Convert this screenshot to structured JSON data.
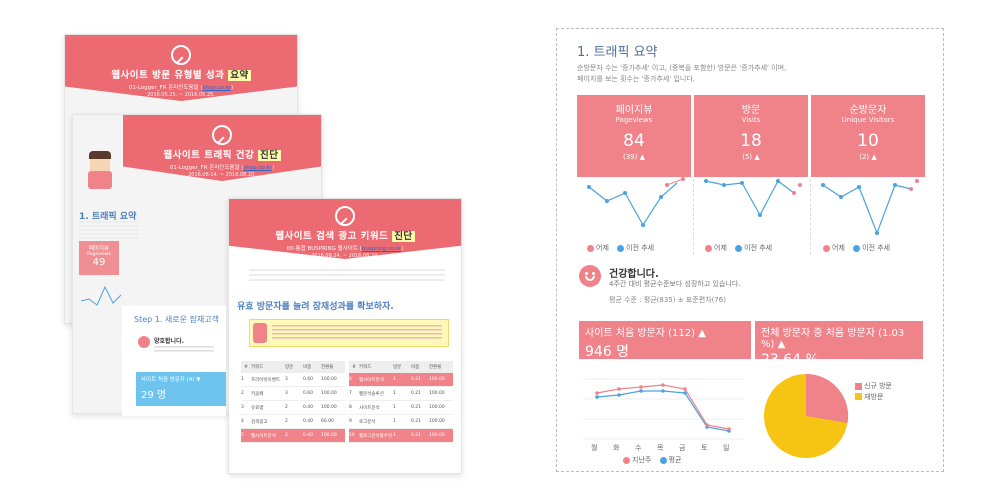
{
  "card1": {
    "title_pre": "웹사이트 방문 유형별 성과 ",
    "title_hl": "요약",
    "subtitle": "01-Logger_FR 온라인도움말 (",
    "link": "shop.co.kr",
    "subtitle_end": ")",
    "dates": "2016.05.25. ~ 2016.05.25."
  },
  "card2": {
    "title_pre": "웹사이트 트래픽 건강 ",
    "title_hl": "진단",
    "subtitle": "01-Logger_FR 온라인도움말 (",
    "link": "shop.co.kr",
    "subtitle_end": ")",
    "dates": "2016.08.14. ~ 2016.08.20.",
    "section": "1. 트래픽 요약",
    "metric_label": "페이지뷰",
    "metric_en": "Pageviews",
    "metric_value": "49"
  },
  "card3": {
    "title_pre": "웹사이트 검색 광고 키워드 ",
    "title_hl": "진단",
    "subtitle": "00-통합 BUSPRING 웹사이트 (",
    "link": "buspring.co.kr",
    "subtitle_end": ")",
    "dates": "2016.08.24. ~ 2016.08.24.",
    "heading": "유효 방문자를 늘려 잠재성과를 확보하자.",
    "step": "Step 1. 새로운 잠재고객",
    "ok": "양호합니다.",
    "visitor_label": "사이트 처음 방문자 (4) ▼",
    "visitor_value": "29 명",
    "col_headers": [
      "#",
      "키워드",
      "방문",
      "비중",
      "전환율"
    ],
    "left_rows": [
      {
        "n": "1",
        "kw": "프라이빗이벤트",
        "a": "3",
        "b": "0.60",
        "c": "100.00",
        "hl": false
      },
      {
        "n": "2",
        "kw": "키움페",
        "a": "3",
        "b": "0.60",
        "c": "100.00",
        "hl": false
      },
      {
        "n": "3",
        "kw": "유료앱",
        "a": "2",
        "b": "0.40",
        "c": "100.00",
        "hl": false
      },
      {
        "n": "4",
        "kw": "검색광고",
        "a": "2",
        "b": "0.40",
        "c": "66.00",
        "hl": false
      },
      {
        "n": "5",
        "kw": "웹사이트분석",
        "a": "2",
        "b": "0.40",
        "c": "100.00",
        "hl": true
      }
    ],
    "right_rows": [
      {
        "n": "6",
        "kw": "웹사이트분석",
        "a": "1",
        "b": "0.21",
        "c": "100.00",
        "hl": true
      },
      {
        "n": "7",
        "kw": "웹분석솔루션",
        "a": "1",
        "b": "0.21",
        "c": "100.00",
        "hl": false
      },
      {
        "n": "8",
        "kw": "사이트분석",
        "a": "1",
        "b": "0.21",
        "c": "100.00",
        "hl": false
      },
      {
        "n": "9",
        "kw": "로그분석",
        "a": "1",
        "b": "0.21",
        "c": "100.00",
        "hl": false
      },
      {
        "n": "10",
        "kw": "웹로그분석툴추천",
        "a": "1",
        "b": "0.21",
        "c": "100.00",
        "hl": true
      }
    ]
  },
  "panel": {
    "title": "1. 트래픽 요약",
    "sub1": "순방문자 수는 '증가추세' 이고, (중복을 포함한) 방문은 '증가추세' 이며,",
    "sub2": "페이지를 보는 횟수는 '증가추세' 입니다.",
    "metrics": [
      {
        "ko": "페이지뷰",
        "en": "Pageviews",
        "value": "84",
        "change": "(39) ▲"
      },
      {
        "ko": "방문",
        "en": "Visits",
        "value": "18",
        "change": "(5) ▲"
      },
      {
        "ko": "순방문자",
        "en": "Unique Visitors",
        "value": "10",
        "change": "(2) ▲"
      }
    ],
    "legend_cur": "어제",
    "legend_prev": "이전 추세",
    "health_title": "건강합니다.",
    "health_sub": "4주간 대비 평균수준보다 성장하고 있습니다.",
    "health_line": "평균 수준 : 평균(835) ± 표준편차(76)",
    "first_visit_label": "사이트 처음 방문자 (112) ▲",
    "first_visit_value": "946 명",
    "first_ratio_label": "전체 방문자 중 처음 방문자 (1.03 %) ▲",
    "first_ratio_value": "23.64 %",
    "days": [
      "월",
      "화",
      "수",
      "목",
      "금",
      "토",
      "일"
    ],
    "line_legend_a": "지난주",
    "line_legend_b": "평균",
    "pie_legend_a": "신규 방문",
    "pie_legend_b": "재방문"
  },
  "colors": {
    "accent": "#ec6a72",
    "pink": "#f0828a",
    "blue": "#4aa3df",
    "yellow": "#f6c514"
  },
  "chart_data": [
    {
      "type": "line",
      "name": "pageviews",
      "series": [
        {
          "name": "어제",
          "values": [
            null,
            null,
            null,
            null,
            null,
            0.62,
            0.7
          ]
        },
        {
          "name": "이전 추세",
          "values": [
            0.45,
            0.25,
            0.38,
            0.2,
            0.55,
            0.05,
            0.6
          ]
        }
      ]
    },
    {
      "type": "pie",
      "values": [
        23.64,
        76.36
      ],
      "labels": [
        "신규 방문",
        "재방문"
      ]
    }
  ]
}
